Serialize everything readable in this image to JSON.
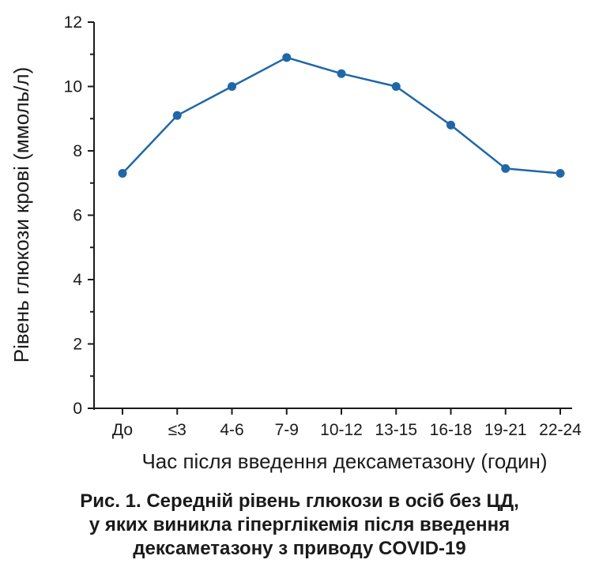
{
  "chart_data": {
    "type": "line",
    "categories": [
      "До",
      "≤3",
      "4-6",
      "7-9",
      "10-12",
      "13-15",
      "16-18",
      "19-21",
      "22-24"
    ],
    "series": [
      {
        "values": [
          7.3,
          9.1,
          10.0,
          10.9,
          10.4,
          10.0,
          8.8,
          7.45,
          7.3
        ]
      }
    ],
    "xlabel": "Час після введення дексаметазону (годин)",
    "ylabel": "Рівень глюкози крові (ммоль/л)",
    "ylim": [
      0,
      12
    ],
    "yticks": [
      0,
      2,
      4,
      6,
      8,
      10,
      12
    ],
    "grid": false,
    "colors": {
      "line": "#1f67a8",
      "axis": "#1a1a1a"
    }
  },
  "caption": {
    "lines": [
      "Рис. 1. Середній рівень глюкози в осіб без ЦД,",
      "у яких виникла гіперглікемія після введення",
      "дексаметазону з приводу COVID-19"
    ]
  }
}
